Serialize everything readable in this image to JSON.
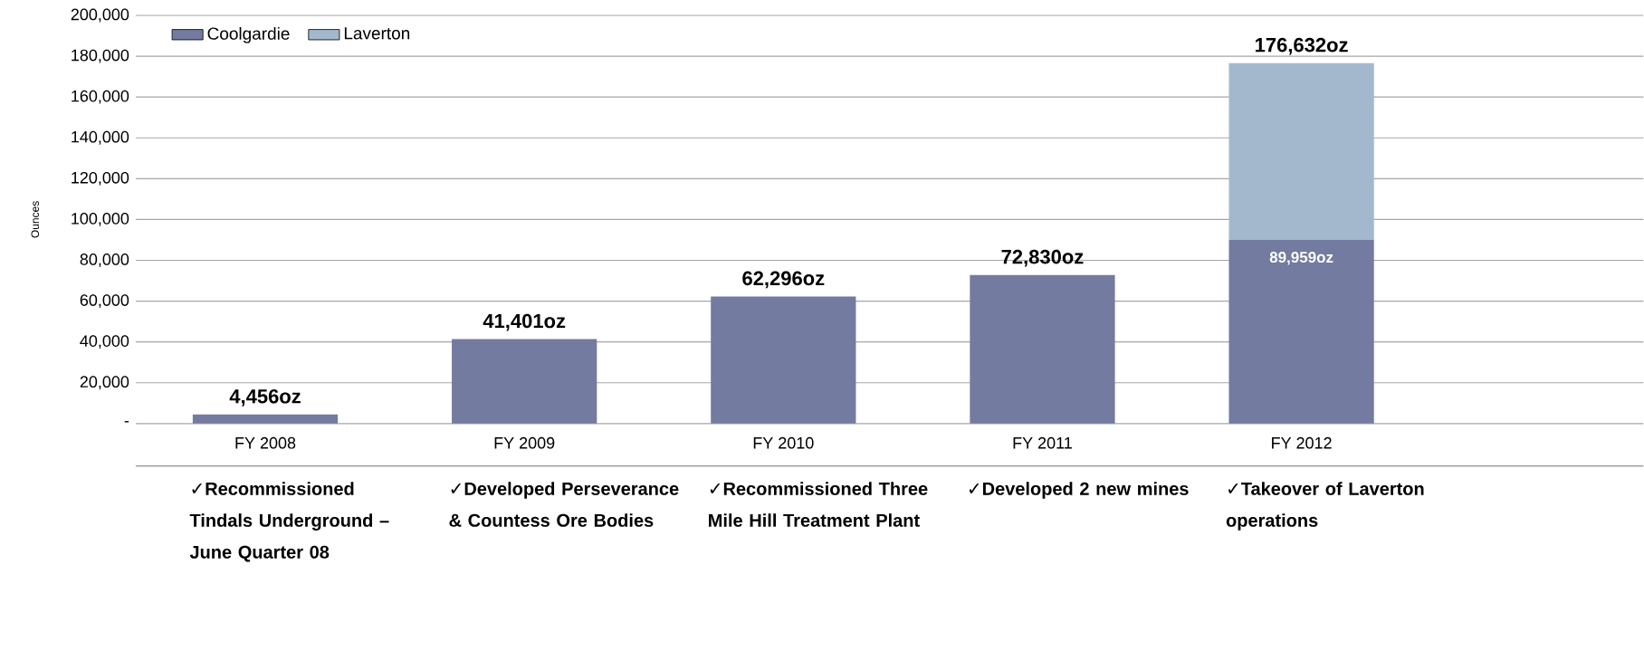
{
  "chart_data": {
    "type": "bar",
    "stacked": true,
    "ylabel": "Ounces",
    "categories": [
      "FY 2008",
      "FY 2009",
      "FY 2010",
      "FY 2011",
      "FY 2012"
    ],
    "series": [
      {
        "name": "Coolgardie",
        "color": "#737ba0",
        "values": [
          4456,
          41401,
          62296,
          72830,
          89959
        ],
        "value_labels": [
          "4,456oz",
          "41,401oz",
          "62,296oz",
          "72,830oz",
          "89,959oz"
        ]
      },
      {
        "name": "Laverton",
        "color": "#a3b8cc",
        "values": [
          null,
          null,
          null,
          null,
          86673
        ]
      }
    ],
    "totals": [
      null,
      null,
      null,
      null,
      "176,632oz"
    ],
    "ylim": [
      0,
      200000
    ],
    "yticks": [
      {
        "value": 0,
        "label": "-"
      },
      {
        "value": 20000,
        "label": "20,000"
      },
      {
        "value": 40000,
        "label": "40,000"
      },
      {
        "value": 60000,
        "label": "60,000"
      },
      {
        "value": 80000,
        "label": "80,000"
      },
      {
        "value": 100000,
        "label": "100,000"
      },
      {
        "value": 120000,
        "label": "120,000"
      },
      {
        "value": 140000,
        "label": "140,000"
      },
      {
        "value": 160000,
        "label": "160,000"
      },
      {
        "value": 180000,
        "label": "180,000"
      },
      {
        "value": 200000,
        "label": "200,000"
      }
    ],
    "grid": "y",
    "legend": "top left",
    "annotations": [
      "✓Recommissioned Tindals Underground – June Quarter 08",
      "✓Developed Perseverance & Countess Ore Bodies",
      "✓Recommissioned Three Mile Hill Treatment Plant",
      "✓Developed 2 new mines",
      "✓Takeover of Laverton operations"
    ]
  }
}
